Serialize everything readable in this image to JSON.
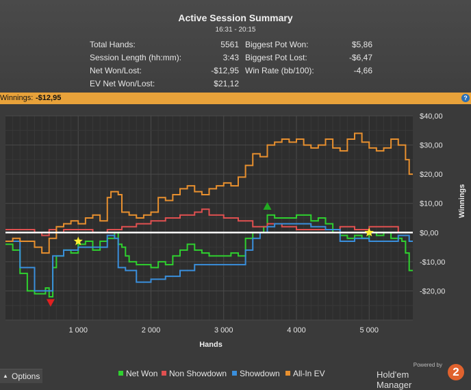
{
  "summary": {
    "title": "Active Session Summary",
    "time_range": "16:31 - 20:15",
    "stats": [
      {
        "label": "Total Hands:",
        "value": "5561"
      },
      {
        "label": "Session Length (hh:mm):",
        "value": "3:43"
      },
      {
        "label": "Net Won/Lost:",
        "value": "-$12,95"
      },
      {
        "label": "EV Net Won/Lost:",
        "value": "$21,12"
      },
      {
        "label": "Biggest Pot Won:",
        "value": "$5,86"
      },
      {
        "label": "Biggest Pot Lost:",
        "value": "-$6,47"
      },
      {
        "label": "Win Rate (bb/100):",
        "value": "-4,66"
      }
    ]
  },
  "winnings_bar": {
    "label": "Winnings:",
    "value": "-$12,95"
  },
  "options_label": "Options",
  "brand": {
    "powered": "Powered by",
    "name": "Hold'em Manager",
    "logo": "2"
  },
  "chart_data": {
    "type": "line",
    "xlabel": "Hands",
    "ylabel": "Winnings",
    "xlim": [
      0,
      5600
    ],
    "ylim": [
      -30,
      40
    ],
    "x_ticks": [
      {
        "value": 1000,
        "label": "1 000"
      },
      {
        "value": 2000,
        "label": "2 000"
      },
      {
        "value": 3000,
        "label": "3 000"
      },
      {
        "value": 4000,
        "label": "4 000"
      },
      {
        "value": 5000,
        "label": "5 000"
      }
    ],
    "y_ticks": [
      {
        "value": 40,
        "label": "$40,00"
      },
      {
        "value": 30,
        "label": "$30,00"
      },
      {
        "value": 20,
        "label": "$20,00"
      },
      {
        "value": 10,
        "label": "$10,00"
      },
      {
        "value": 0,
        "label": "$0,00"
      },
      {
        "value": -10,
        "label": "-$10,00"
      },
      {
        "value": -20,
        "label": "-$20,00"
      }
    ],
    "grid": true,
    "legend_position": "bottom",
    "series": [
      {
        "name": "Net Won",
        "color": "#2fd12f",
        "points": [
          [
            0,
            -4
          ],
          [
            100,
            -6
          ],
          [
            200,
            -14
          ],
          [
            300,
            -20
          ],
          [
            400,
            -21
          ],
          [
            500,
            -21
          ],
          [
            550,
            -19
          ],
          [
            600,
            -22
          ],
          [
            650,
            -12
          ],
          [
            700,
            -8
          ],
          [
            800,
            -6
          ],
          [
            900,
            -7
          ],
          [
            1000,
            -4
          ],
          [
            1100,
            -3
          ],
          [
            1200,
            -6
          ],
          [
            1300,
            -3
          ],
          [
            1400,
            -2
          ],
          [
            1500,
            0
          ],
          [
            1550,
            -4
          ],
          [
            1600,
            -5
          ],
          [
            1650,
            -8
          ],
          [
            1700,
            -10
          ],
          [
            1800,
            -11
          ],
          [
            1900,
            -11
          ],
          [
            2000,
            -12
          ],
          [
            2100,
            -10
          ],
          [
            2200,
            -11
          ],
          [
            2300,
            -8
          ],
          [
            2400,
            -6
          ],
          [
            2500,
            -4
          ],
          [
            2600,
            -6
          ],
          [
            2700,
            -7
          ],
          [
            2800,
            -8
          ],
          [
            2900,
            -8
          ],
          [
            3000,
            -8
          ],
          [
            3100,
            -7
          ],
          [
            3200,
            -8
          ],
          [
            3300,
            -2
          ],
          [
            3400,
            0
          ],
          [
            3500,
            0
          ],
          [
            3550,
            2
          ],
          [
            3600,
            6
          ],
          [
            3700,
            5
          ],
          [
            3800,
            5
          ],
          [
            3900,
            5
          ],
          [
            4000,
            6
          ],
          [
            4100,
            6
          ],
          [
            4200,
            4
          ],
          [
            4300,
            5
          ],
          [
            4400,
            3
          ],
          [
            4500,
            0
          ],
          [
            4600,
            -1
          ],
          [
            4700,
            -2
          ],
          [
            4800,
            -1
          ],
          [
            4900,
            -2
          ],
          [
            5000,
            0
          ],
          [
            5100,
            -1
          ],
          [
            5200,
            0
          ],
          [
            5300,
            -2
          ],
          [
            5400,
            -2
          ],
          [
            5450,
            -3
          ],
          [
            5500,
            -7
          ],
          [
            5550,
            -13
          ],
          [
            5600,
            -13
          ]
        ]
      },
      {
        "name": "Non Showdown",
        "color": "#e05050",
        "points": [
          [
            0,
            1
          ],
          [
            200,
            1
          ],
          [
            400,
            0
          ],
          [
            500,
            -1
          ],
          [
            600,
            1
          ],
          [
            700,
            0
          ],
          [
            800,
            1
          ],
          [
            1000,
            1
          ],
          [
            1200,
            0
          ],
          [
            1400,
            1
          ],
          [
            1600,
            2
          ],
          [
            1800,
            3
          ],
          [
            2000,
            4
          ],
          [
            2200,
            5
          ],
          [
            2400,
            6
          ],
          [
            2600,
            7
          ],
          [
            2700,
            8
          ],
          [
            2800,
            6
          ],
          [
            3000,
            5
          ],
          [
            3200,
            4
          ],
          [
            3400,
            2
          ],
          [
            3600,
            3
          ],
          [
            3800,
            2
          ],
          [
            4000,
            1
          ],
          [
            4200,
            1
          ],
          [
            4400,
            1
          ],
          [
            4600,
            2
          ],
          [
            4800,
            1
          ],
          [
            5000,
            2
          ],
          [
            5200,
            2
          ],
          [
            5400,
            0
          ],
          [
            5600,
            0
          ]
        ]
      },
      {
        "name": "Showdown",
        "color": "#3a8fdc",
        "points": [
          [
            0,
            -3
          ],
          [
            200,
            -12
          ],
          [
            400,
            -20
          ],
          [
            550,
            -20
          ],
          [
            650,
            -8
          ],
          [
            800,
            -6
          ],
          [
            1000,
            -5
          ],
          [
            1200,
            -5
          ],
          [
            1400,
            -1
          ],
          [
            1500,
            -2
          ],
          [
            1550,
            -12
          ],
          [
            1650,
            -13
          ],
          [
            1800,
            -17
          ],
          [
            1950,
            -17
          ],
          [
            2000,
            -16
          ],
          [
            2200,
            -15
          ],
          [
            2400,
            -13
          ],
          [
            2600,
            -11
          ],
          [
            2800,
            -11
          ],
          [
            3000,
            -11
          ],
          [
            3200,
            -11
          ],
          [
            3300,
            -6
          ],
          [
            3400,
            -2
          ],
          [
            3500,
            0
          ],
          [
            3600,
            2
          ],
          [
            3700,
            3
          ],
          [
            3800,
            3
          ],
          [
            4000,
            3
          ],
          [
            4200,
            2
          ],
          [
            4400,
            1
          ],
          [
            4600,
            -3
          ],
          [
            4800,
            -2
          ],
          [
            5000,
            -3
          ],
          [
            5200,
            -3
          ],
          [
            5400,
            -1
          ],
          [
            5500,
            -1
          ],
          [
            5550,
            -3
          ],
          [
            5600,
            -3
          ]
        ]
      },
      {
        "name": "All-In EV",
        "color": "#e8902f",
        "points": [
          [
            0,
            -3
          ],
          [
            100,
            -2
          ],
          [
            200,
            -3
          ],
          [
            300,
            -3
          ],
          [
            400,
            -5
          ],
          [
            500,
            -7
          ],
          [
            600,
            -2
          ],
          [
            700,
            2
          ],
          [
            800,
            3
          ],
          [
            900,
            4
          ],
          [
            1000,
            3
          ],
          [
            1100,
            5
          ],
          [
            1200,
            6
          ],
          [
            1300,
            4
          ],
          [
            1400,
            12
          ],
          [
            1450,
            14
          ],
          [
            1550,
            13
          ],
          [
            1600,
            7
          ],
          [
            1700,
            6
          ],
          [
            1800,
            5
          ],
          [
            1900,
            6
          ],
          [
            2000,
            7
          ],
          [
            2100,
            12
          ],
          [
            2200,
            11
          ],
          [
            2300,
            13
          ],
          [
            2400,
            15
          ],
          [
            2500,
            16
          ],
          [
            2600,
            14
          ],
          [
            2700,
            13
          ],
          [
            2800,
            15
          ],
          [
            2900,
            16
          ],
          [
            3000,
            17
          ],
          [
            3100,
            16
          ],
          [
            3200,
            19
          ],
          [
            3300,
            23
          ],
          [
            3400,
            27
          ],
          [
            3500,
            26
          ],
          [
            3600,
            30
          ],
          [
            3700,
            31
          ],
          [
            3800,
            32
          ],
          [
            3900,
            31
          ],
          [
            4000,
            32
          ],
          [
            4100,
            30
          ],
          [
            4200,
            29
          ],
          [
            4300,
            30
          ],
          [
            4400,
            32
          ],
          [
            4500,
            29
          ],
          [
            4600,
            28
          ],
          [
            4700,
            32
          ],
          [
            4800,
            34
          ],
          [
            4900,
            31
          ],
          [
            5000,
            29
          ],
          [
            5100,
            28
          ],
          [
            5200,
            29
          ],
          [
            5300,
            32
          ],
          [
            5400,
            30
          ],
          [
            5500,
            25
          ],
          [
            5550,
            20
          ],
          [
            5600,
            20
          ]
        ]
      }
    ],
    "markers": [
      {
        "type": "star",
        "x": 1000,
        "y": -3,
        "color": "#ffef33"
      },
      {
        "type": "star",
        "x": 5000,
        "y": 0,
        "color": "#ffef33"
      },
      {
        "type": "triangle-up",
        "x": 3600,
        "y": 9,
        "color": "#22aa22"
      },
      {
        "type": "triangle-down",
        "x": 620,
        "y": -24,
        "color": "#e02020"
      }
    ]
  }
}
